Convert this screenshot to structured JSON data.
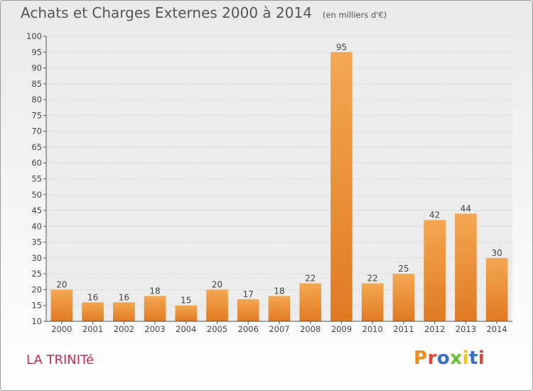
{
  "header": {
    "title": "Achats et Charges Externes 2000 à 2014",
    "subtitle": "(en milliers d'€)"
  },
  "footer": {
    "place": "LA TRINITé",
    "logo": "Proxiti"
  },
  "colors": {
    "bar_light": "#f4a752",
    "bar_dark": "#e07a23",
    "title": "#555555",
    "place": "#cc2a52",
    "logo_letters": [
      "#f08c1e",
      "#e0463a",
      "#3a6fc4",
      "#6abd2f",
      "#f0c419",
      "#3a6fc4",
      "#e0463a"
    ]
  },
  "chart_data": {
    "type": "bar",
    "categories": [
      "2000",
      "2001",
      "2002",
      "2003",
      "2004",
      "2005",
      "2006",
      "2007",
      "2008",
      "2009",
      "2010",
      "2011",
      "2012",
      "2013",
      "2014"
    ],
    "values": [
      20,
      16,
      16,
      18,
      15,
      20,
      17,
      18,
      22,
      95,
      22,
      25,
      42,
      44,
      30
    ],
    "title": "Achats et Charges Externes 2000 à 2014",
    "subtitle": "(en milliers d'€)",
    "xlabel": "",
    "ylabel": "",
    "ylim": [
      10,
      100
    ],
    "yticks": [
      10,
      15,
      20,
      25,
      30,
      35,
      40,
      45,
      50,
      55,
      60,
      65,
      70,
      75,
      80,
      85,
      90,
      95,
      100
    ],
    "grid": true,
    "legend": "none"
  }
}
